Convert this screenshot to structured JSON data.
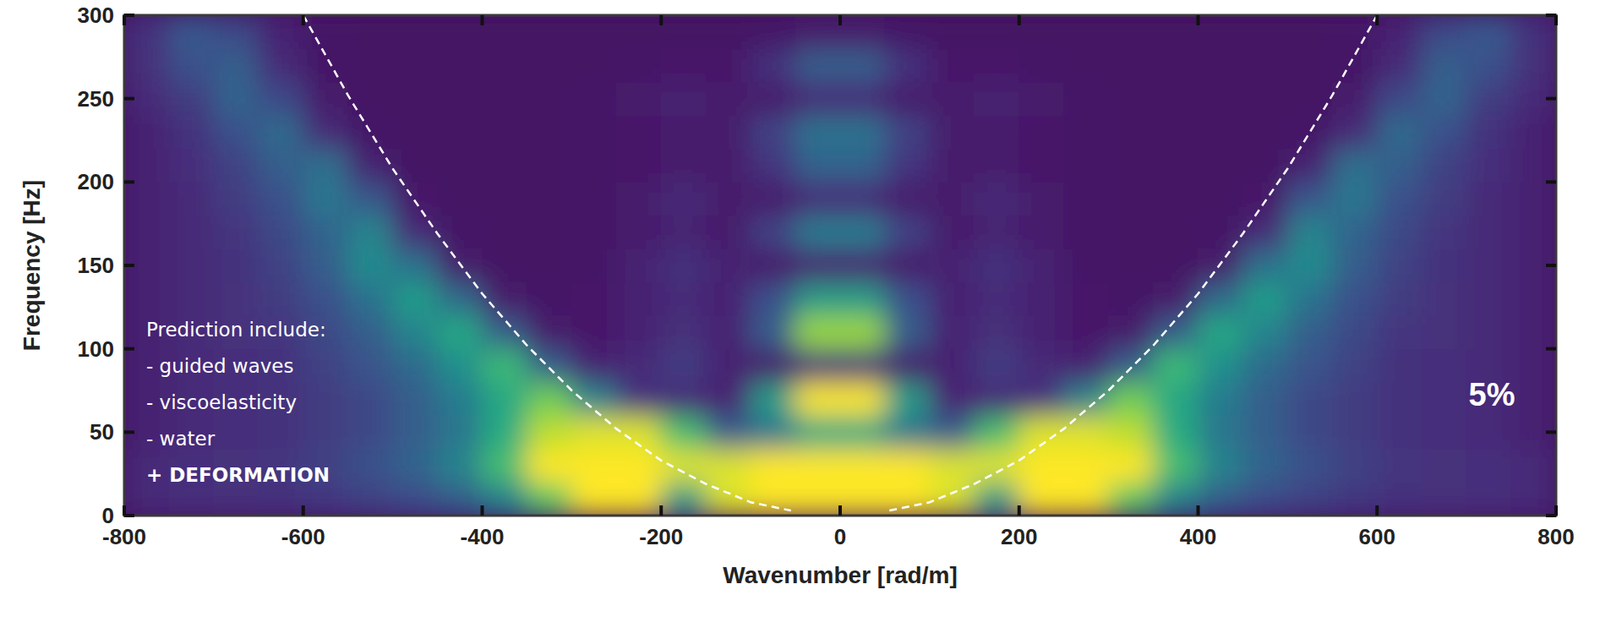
{
  "chart_data": {
    "type": "heatmap",
    "xlabel": "Wavenumber [rad/m]",
    "ylabel": "Frequency [Hz]",
    "xlim": [
      -800,
      800
    ],
    "ylim": [
      0,
      300
    ],
    "xticks": [
      -800,
      -600,
      -400,
      -200,
      0,
      200,
      400,
      600,
      800
    ],
    "yticks": [
      0,
      50,
      100,
      150,
      200,
      250,
      300
    ],
    "grid": false,
    "annotations": [
      "Prediction include:",
      "- guided waves",
      "- viscoelasticity",
      "- water",
      "+ DEFORMATION"
    ],
    "panel_label": "5%",
    "x_edges": [
      -800,
      -750,
      -700,
      -650,
      -600,
      -550,
      -500,
      -450,
      -400,
      -350,
      -300,
      -250,
      -200,
      -150,
      -100,
      -50,
      0,
      50,
      100,
      150,
      200,
      250,
      300,
      350,
      400,
      450,
      500,
      550,
      600,
      650,
      700,
      750,
      800
    ],
    "y_edges": [
      0,
      20,
      40,
      60,
      80,
      100,
      120,
      140,
      160,
      180,
      200,
      220,
      240,
      260,
      280,
      300
    ],
    "zlim": [
      0,
      1
    ],
    "z": [
      [
        0.12,
        0.13,
        0.14,
        0.15,
        0.17,
        0.2,
        0.24,
        0.3,
        0.45,
        0.75,
        1.0,
        1.0,
        0.55,
        0.95,
        1.0,
        1.0,
        1.0,
        1.0,
        0.95,
        0.55,
        1.0,
        1.0,
        0.75,
        0.45,
        0.3,
        0.24,
        0.2,
        0.17,
        0.15,
        0.14,
        0.13,
        0.12
      ],
      [
        0.12,
        0.13,
        0.14,
        0.16,
        0.2,
        0.25,
        0.32,
        0.45,
        0.7,
        1.0,
        1.0,
        1.0,
        0.95,
        0.95,
        1.0,
        1.0,
        1.0,
        1.0,
        0.95,
        0.95,
        1.0,
        1.0,
        1.0,
        0.7,
        0.45,
        0.32,
        0.25,
        0.2,
        0.16,
        0.14,
        0.13,
        0.12
      ],
      [
        0.1,
        0.12,
        0.13,
        0.15,
        0.18,
        0.22,
        0.3,
        0.4,
        0.62,
        0.9,
        0.95,
        0.95,
        0.7,
        0.3,
        0.4,
        0.6,
        0.6,
        0.4,
        0.3,
        0.7,
        0.95,
        0.95,
        0.9,
        0.62,
        0.4,
        0.3,
        0.22,
        0.18,
        0.15,
        0.13,
        0.12,
        0.1
      ],
      [
        0.1,
        0.12,
        0.13,
        0.15,
        0.18,
        0.22,
        0.3,
        0.42,
        0.6,
        0.78,
        0.45,
        0.15,
        0.12,
        0.1,
        0.55,
        1.0,
        1.0,
        0.55,
        0.1,
        0.12,
        0.15,
        0.45,
        0.78,
        0.6,
        0.42,
        0.3,
        0.22,
        0.18,
        0.15,
        0.13,
        0.12,
        0.1
      ],
      [
        0.1,
        0.12,
        0.13,
        0.15,
        0.2,
        0.26,
        0.35,
        0.5,
        0.68,
        0.3,
        0.1,
        0.12,
        0.18,
        0.1,
        0.08,
        0.15,
        0.15,
        0.08,
        0.1,
        0.18,
        0.12,
        0.1,
        0.3,
        0.68,
        0.5,
        0.35,
        0.26,
        0.2,
        0.15,
        0.13,
        0.12,
        0.1
      ],
      [
        0.1,
        0.12,
        0.14,
        0.16,
        0.22,
        0.3,
        0.45,
        0.6,
        0.3,
        0.08,
        0.07,
        0.1,
        0.14,
        0.1,
        0.3,
        0.85,
        0.85,
        0.3,
        0.1,
        0.14,
        0.1,
        0.07,
        0.08,
        0.3,
        0.6,
        0.45,
        0.3,
        0.22,
        0.16,
        0.14,
        0.12,
        0.1
      ],
      [
        0.1,
        0.12,
        0.14,
        0.18,
        0.25,
        0.38,
        0.55,
        0.35,
        0.08,
        0.06,
        0.07,
        0.1,
        0.12,
        0.1,
        0.25,
        0.55,
        0.55,
        0.25,
        0.1,
        0.12,
        0.1,
        0.07,
        0.06,
        0.08,
        0.35,
        0.55,
        0.38,
        0.25,
        0.18,
        0.14,
        0.12,
        0.1
      ],
      [
        0.1,
        0.12,
        0.15,
        0.2,
        0.3,
        0.48,
        0.38,
        0.08,
        0.05,
        0.05,
        0.06,
        0.1,
        0.15,
        0.1,
        0.08,
        0.1,
        0.1,
        0.08,
        0.1,
        0.15,
        0.1,
        0.06,
        0.05,
        0.05,
        0.08,
        0.38,
        0.48,
        0.3,
        0.2,
        0.15,
        0.12,
        0.1
      ],
      [
        0.1,
        0.12,
        0.16,
        0.22,
        0.32,
        0.45,
        0.12,
        0.06,
        0.05,
        0.05,
        0.06,
        0.08,
        0.1,
        0.08,
        0.2,
        0.42,
        0.42,
        0.2,
        0.08,
        0.1,
        0.08,
        0.06,
        0.05,
        0.05,
        0.06,
        0.12,
        0.45,
        0.32,
        0.22,
        0.16,
        0.12,
        0.1
      ],
      [
        0.1,
        0.12,
        0.18,
        0.25,
        0.4,
        0.28,
        0.07,
        0.05,
        0.05,
        0.05,
        0.06,
        0.08,
        0.12,
        0.08,
        0.08,
        0.12,
        0.12,
        0.08,
        0.08,
        0.12,
        0.08,
        0.06,
        0.05,
        0.05,
        0.05,
        0.07,
        0.28,
        0.4,
        0.25,
        0.18,
        0.12,
        0.1
      ],
      [
        0.1,
        0.13,
        0.2,
        0.3,
        0.37,
        0.1,
        0.05,
        0.05,
        0.05,
        0.05,
        0.06,
        0.07,
        0.08,
        0.08,
        0.16,
        0.32,
        0.32,
        0.16,
        0.08,
        0.08,
        0.07,
        0.06,
        0.05,
        0.05,
        0.05,
        0.05,
        0.1,
        0.37,
        0.3,
        0.2,
        0.13,
        0.1
      ],
      [
        0.1,
        0.15,
        0.25,
        0.35,
        0.12,
        0.06,
        0.05,
        0.05,
        0.05,
        0.05,
        0.06,
        0.07,
        0.08,
        0.08,
        0.2,
        0.38,
        0.38,
        0.2,
        0.08,
        0.08,
        0.07,
        0.06,
        0.05,
        0.05,
        0.05,
        0.05,
        0.06,
        0.12,
        0.35,
        0.25,
        0.15,
        0.1
      ],
      [
        0.12,
        0.18,
        0.32,
        0.22,
        0.08,
        0.05,
        0.05,
        0.05,
        0.05,
        0.05,
        0.06,
        0.08,
        0.1,
        0.08,
        0.08,
        0.12,
        0.12,
        0.08,
        0.08,
        0.1,
        0.08,
        0.06,
        0.05,
        0.05,
        0.05,
        0.05,
        0.05,
        0.08,
        0.22,
        0.32,
        0.18,
        0.12
      ],
      [
        0.14,
        0.25,
        0.3,
        0.12,
        0.06,
        0.05,
        0.05,
        0.05,
        0.05,
        0.05,
        0.05,
        0.06,
        0.07,
        0.07,
        0.15,
        0.3,
        0.3,
        0.15,
        0.07,
        0.07,
        0.06,
        0.05,
        0.05,
        0.05,
        0.05,
        0.05,
        0.05,
        0.06,
        0.12,
        0.3,
        0.25,
        0.14
      ],
      [
        0.15,
        0.28,
        0.22,
        0.1,
        0.06,
        0.05,
        0.05,
        0.05,
        0.05,
        0.05,
        0.05,
        0.05,
        0.05,
        0.05,
        0.06,
        0.08,
        0.08,
        0.06,
        0.05,
        0.05,
        0.05,
        0.05,
        0.05,
        0.05,
        0.05,
        0.05,
        0.05,
        0.06,
        0.1,
        0.22,
        0.28,
        0.15
      ]
    ],
    "series": [
      {
        "type": "line",
        "color": "#ffffff",
        "line_style": "dashed",
        "x": [
          -600,
          -550,
          -500,
          -450,
          -400,
          -350,
          -300,
          -250,
          -200,
          -150,
          -100,
          -55
        ],
        "values": [
          300,
          252,
          208,
          169,
          133,
          102,
          75,
          52,
          33,
          19,
          8,
          3
        ]
      },
      {
        "type": "line",
        "color": "#ffffff",
        "line_style": "dashed",
        "x": [
          55,
          100,
          150,
          200,
          250,
          300,
          350,
          400,
          450,
          500,
          550,
          600
        ],
        "values": [
          3,
          8,
          19,
          33,
          52,
          75,
          102,
          133,
          169,
          208,
          252,
          300
        ]
      }
    ]
  }
}
